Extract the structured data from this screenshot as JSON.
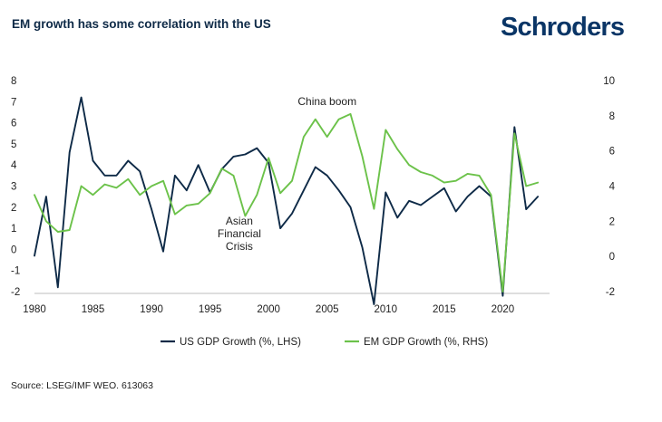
{
  "header": {
    "title": "EM growth has some correlation with the US",
    "brand": "Schroders"
  },
  "footer": {
    "source": "Source: LSEG/IMF WEO. 613063"
  },
  "chart_data": {
    "type": "line",
    "title": "EM growth has some correlation with the US",
    "x_ticks": [
      1980,
      1985,
      1990,
      1995,
      2000,
      2005,
      2010,
      2015,
      2020
    ],
    "xlim": [
      1980,
      2024
    ],
    "left_axis": {
      "ylim": [
        -2,
        8
      ],
      "ticks": [
        -2,
        -1,
        0,
        1,
        2,
        3,
        4,
        5,
        6,
        7,
        8
      ]
    },
    "right_axis": {
      "ylim": [
        -2,
        10
      ],
      "ticks": [
        -2,
        0,
        2,
        4,
        6,
        8,
        10
      ]
    },
    "grid": false,
    "legend_position": "bottom",
    "series": [
      {
        "name": "US GDP Growth (%, LHS)",
        "axis": "left",
        "color": "#0e2a47",
        "x": [
          1980,
          1981,
          1982,
          1983,
          1984,
          1985,
          1986,
          1987,
          1988,
          1989,
          1990,
          1991,
          1992,
          1993,
          1994,
          1995,
          1996,
          1997,
          1998,
          1999,
          2000,
          2001,
          2002,
          2003,
          2004,
          2005,
          2006,
          2007,
          2008,
          2009,
          2010,
          2011,
          2012,
          2013,
          2014,
          2015,
          2016,
          2017,
          2018,
          2019,
          2020,
          2021,
          2022,
          2023
        ],
        "values": [
          -0.3,
          2.5,
          -1.8,
          4.6,
          7.2,
          4.2,
          3.5,
          3.5,
          4.2,
          3.7,
          1.9,
          -0.1,
          3.5,
          2.8,
          4.0,
          2.7,
          3.8,
          4.4,
          4.5,
          4.8,
          4.1,
          1.0,
          1.7,
          2.8,
          3.9,
          3.5,
          2.8,
          2.0,
          0.1,
          -2.6,
          2.7,
          1.5,
          2.3,
          2.1,
          2.5,
          2.9,
          1.8,
          2.5,
          3.0,
          2.5,
          -2.2,
          5.8,
          1.9,
          2.5
        ]
      },
      {
        "name": "EM GDP Growth (%, RHS)",
        "axis": "right",
        "color": "#6cc24a",
        "x": [
          1980,
          1981,
          1982,
          1983,
          1984,
          1985,
          1986,
          1987,
          1988,
          1989,
          1990,
          1991,
          1992,
          1993,
          1994,
          1995,
          1996,
          1997,
          1998,
          1999,
          2000,
          2001,
          2002,
          2003,
          2004,
          2005,
          2006,
          2007,
          2008,
          2009,
          2010,
          2011,
          2012,
          2013,
          2014,
          2015,
          2016,
          2017,
          2018,
          2019,
          2020,
          2021,
          2022,
          2023
        ],
        "values": [
          3.5,
          2.0,
          1.4,
          1.5,
          4.0,
          3.5,
          4.1,
          3.9,
          4.4,
          3.5,
          4.0,
          4.3,
          2.4,
          2.9,
          3.0,
          3.6,
          5.0,
          4.6,
          2.3,
          3.5,
          5.6,
          3.6,
          4.3,
          6.8,
          7.8,
          6.8,
          7.8,
          8.1,
          5.7,
          2.7,
          7.2,
          6.1,
          5.2,
          4.8,
          4.6,
          4.2,
          4.3,
          4.7,
          4.6,
          3.5,
          -2.0,
          7.0,
          4.0,
          4.2
        ]
      }
    ],
    "annotations": [
      {
        "lines": [
          "China boom"
        ],
        "x": 2005,
        "y_right": 8.6
      },
      {
        "lines": [
          "Asian",
          "Financial",
          "Crisis"
        ],
        "x": 1997.5,
        "y_right": 1.8
      }
    ]
  }
}
